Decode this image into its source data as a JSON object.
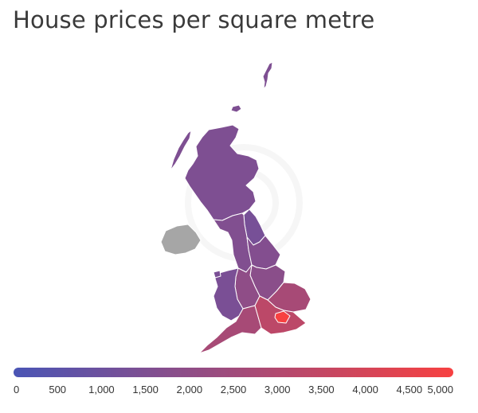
{
  "title": "House prices per square metre",
  "legend": {
    "min": 0,
    "max": 5000,
    "ticks": [
      "0",
      "500",
      "1,000",
      "1,500",
      "2,000",
      "2,500",
      "3,000",
      "3,500",
      "4,000",
      "4,500",
      "5,000"
    ],
    "color_low": "#4a55b5",
    "color_high": "#f74141"
  },
  "regions": [
    {
      "name": "Scotland",
      "value": 1500
    },
    {
      "name": "North East",
      "value": 1300
    },
    {
      "name": "North West",
      "value": 1600
    },
    {
      "name": "Yorkshire and The Humber",
      "value": 1650
    },
    {
      "name": "East Midlands",
      "value": 1850
    },
    {
      "name": "West Midlands",
      "value": 2000
    },
    {
      "name": "Wales",
      "value": 1400
    },
    {
      "name": "East of England",
      "value": 2700
    },
    {
      "name": "South West",
      "value": 2700
    },
    {
      "name": "South East",
      "value": 3300
    },
    {
      "name": "London",
      "value": 5000
    },
    {
      "name": "Northern Ireland",
      "value": null
    }
  ],
  "colors": {
    "no_data": "#a6a6a6",
    "border": "#ffffff"
  }
}
